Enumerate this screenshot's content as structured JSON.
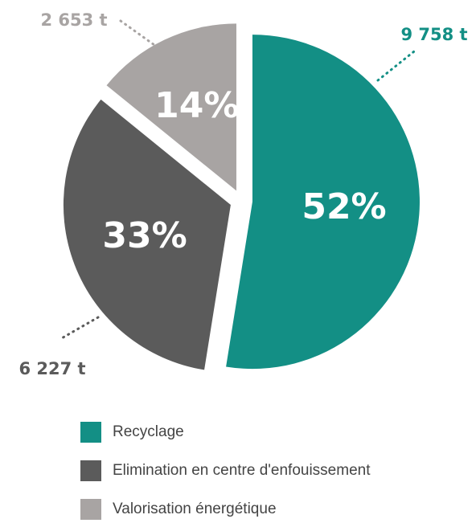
{
  "chart_data": {
    "type": "pie",
    "categories": [
      "Recyclage",
      "Elimination en centre d'enfouissement",
      "Valorisation énergétique"
    ],
    "values": [
      52,
      33,
      14
    ],
    "value_labels": [
      "52%",
      "33%",
      "14%"
    ],
    "annotations": [
      "9 758 t",
      "6 227 t",
      "2 653 t"
    ],
    "colors": [
      "#138f85",
      "#5b5b5b",
      "#a8a4a3"
    ]
  }
}
